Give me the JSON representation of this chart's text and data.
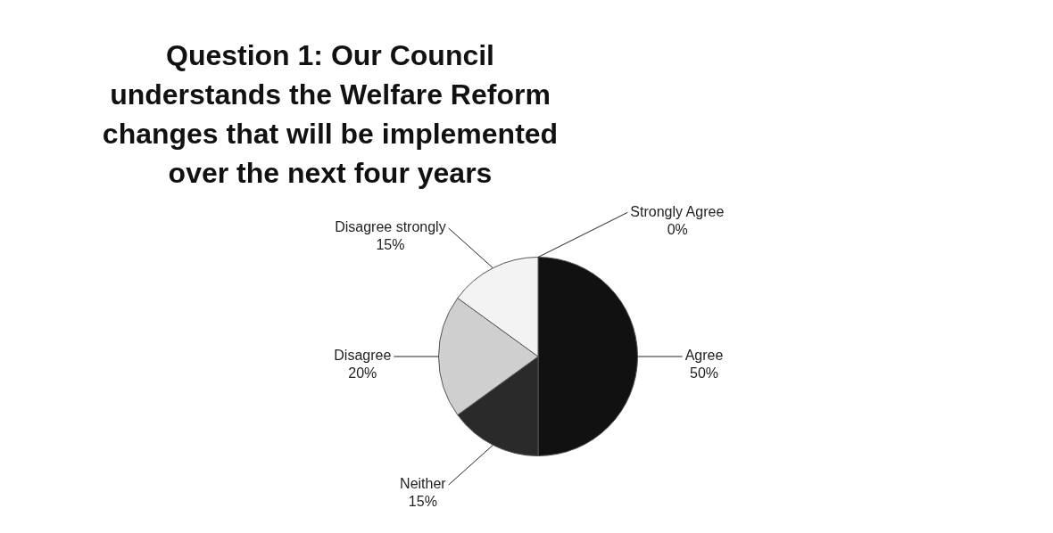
{
  "chart_data": {
    "type": "pie",
    "title": "Question 1: Our Council understands the Welfare Reform changes that will be implemented over the next four years",
    "categories": [
      "Strongly Agree",
      "Agree",
      "Neither",
      "Disagree",
      "Disagree strongly"
    ],
    "values": [
      0,
      50,
      15,
      20,
      15
    ],
    "value_labels": [
      "0%",
      "50%",
      "15%",
      "20%",
      "15%"
    ],
    "colors": [
      "#7f7f7f",
      "#111111",
      "#2a2a2a",
      "#cfcfcf",
      "#f3f3f3"
    ],
    "legend": false
  }
}
